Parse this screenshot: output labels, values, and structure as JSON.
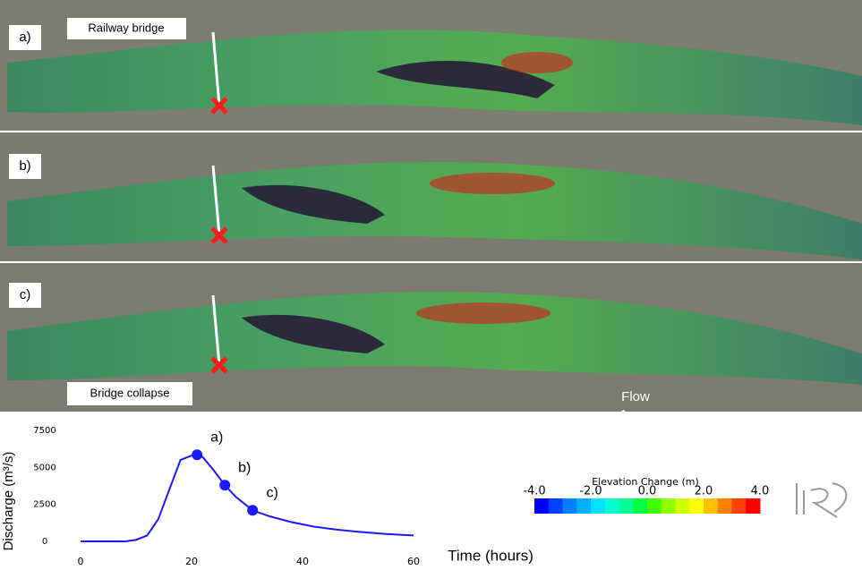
{
  "map_panels": [
    {
      "label": "a)"
    },
    {
      "label": "b)"
    },
    {
      "label": "c)"
    }
  ],
  "annotations": {
    "railway": "Railway bridge",
    "collapse": "Bridge collapse",
    "flow": "Flow"
  },
  "chart_data": {
    "type": "line",
    "ylabel": "Discharge (m³/s)",
    "xlabel": "Time (hours)",
    "x": [
      0,
      4,
      8,
      10,
      12,
      14,
      16,
      18,
      20,
      21,
      22,
      24,
      26,
      28,
      30,
      31,
      34,
      38,
      42,
      46,
      50,
      55,
      60
    ],
    "series": [
      {
        "color": "#1a1aff",
        "values": [
          0,
          0,
          0,
          100,
          400,
          1500,
          3500,
          5500,
          5800,
          5850,
          5700,
          4800,
          3800,
          3000,
          2400,
          2100,
          1700,
          1300,
          1000,
          800,
          650,
          500,
          400
        ]
      }
    ],
    "points": [
      {
        "x": 21,
        "y": 5850,
        "label": "a)"
      },
      {
        "x": 26,
        "y": 3800,
        "label": "b)"
      },
      {
        "x": 31,
        "y": 2100,
        "label": "c)"
      }
    ],
    "xlim": [
      0,
      60
    ],
    "ylim": [
      0,
      7500
    ],
    "xticks": [
      0,
      20,
      40,
      60
    ],
    "yticks": [
      0,
      2500,
      5000,
      7500
    ],
    "grid": false
  },
  "colorbar": {
    "title": "Elevation Change (m)",
    "ticks": [
      {
        "value": -4,
        "label": "-4.0"
      },
      {
        "value": -2,
        "label": "-2.0"
      },
      {
        "value": 0,
        "label": "0.0"
      },
      {
        "value": 2,
        "label": "2.0"
      },
      {
        "value": 4,
        "label": "4.0"
      }
    ],
    "lim": [
      -4,
      4
    ],
    "colors": [
      "#0000ff",
      "#0040ff",
      "#0080ff",
      "#00b0ff",
      "#00e0ff",
      "#00ffd0",
      "#00ff90",
      "#00ff40",
      "#40ff00",
      "#90ff00",
      "#d0ff00",
      "#ffff00",
      "#ffc000",
      "#ff8000",
      "#ff4000",
      "#ff0000"
    ]
  }
}
